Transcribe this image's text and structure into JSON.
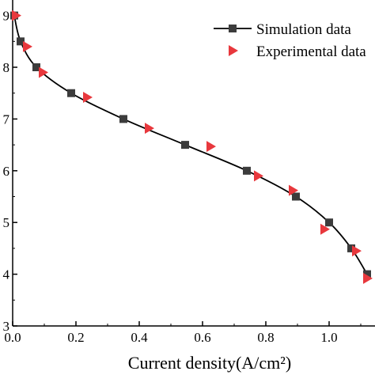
{
  "chart_data": {
    "type": "scatter",
    "xlabel": "Current density(A/cm²)",
    "ylabel": "",
    "xlim": [
      0.0,
      1.17
    ],
    "ylim": [
      3.0,
      9.3
    ],
    "x_ticks": [
      0.0,
      0.2,
      0.4,
      0.6,
      0.8,
      1.0
    ],
    "x_tick_labels": [
      "0.0",
      "0.2",
      "0.4",
      "0.6",
      "0.8",
      "1.0"
    ],
    "y_ticks": [
      3,
      4,
      5,
      6,
      7,
      8,
      9
    ],
    "y_tick_labels": [
      "3",
      "4",
      "5",
      "6",
      "7",
      "8",
      "9"
    ],
    "grid": false,
    "legend_position": "top-right",
    "series": [
      {
        "name": "Simulation data",
        "style": "line-square",
        "color": "#3c3c3c",
        "line_color": "#000000",
        "x": [
          0.005,
          0.025,
          0.075,
          0.185,
          0.35,
          0.545,
          0.74,
          0.895,
          1.0,
          1.07,
          1.12
        ],
        "y": [
          9.0,
          8.5,
          8.0,
          7.5,
          7.0,
          6.5,
          6.0,
          5.5,
          5.0,
          4.5,
          4.0
        ]
      },
      {
        "name": "Experimental data",
        "style": "triangle-right",
        "color": "#e8383d",
        "x": [
          0.01,
          0.045,
          0.095,
          0.235,
          0.43,
          0.625,
          0.775,
          0.885,
          0.985,
          1.085,
          1.12
        ],
        "y": [
          9.0,
          8.4,
          7.9,
          7.42,
          6.82,
          6.47,
          5.9,
          5.62,
          4.87,
          4.45,
          3.92
        ]
      }
    ]
  }
}
